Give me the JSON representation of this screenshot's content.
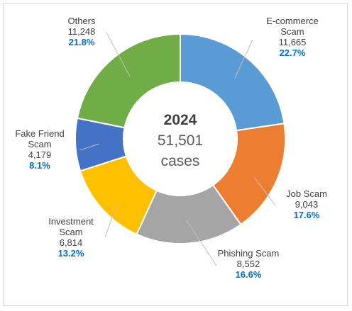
{
  "chart_data": {
    "type": "pie",
    "variant": "donut",
    "center": {
      "year": "2024",
      "total": "51,501",
      "unit": "cases"
    },
    "slices": [
      {
        "name": "E-commerce Scam",
        "lines": [
          "E-commerce",
          "Scam"
        ],
        "count": "11,665",
        "value": 11665,
        "percent": "22.7%",
        "color": "#5b9bd5"
      },
      {
        "name": "Job Scam",
        "lines": [
          "Job Scam"
        ],
        "count": "9,043",
        "value": 9043,
        "percent": "17.6%",
        "color": "#ed7d31"
      },
      {
        "name": "Phishing Scam",
        "lines": [
          "Phishing Scam"
        ],
        "count": "8,552",
        "value": 8552,
        "percent": "16.6%",
        "color": "#a5a5a5"
      },
      {
        "name": "Investment Scam",
        "lines": [
          "Investment",
          "Scam"
        ],
        "count": "6,814",
        "value": 6814,
        "percent": "13.2%",
        "color": "#ffc000"
      },
      {
        "name": "Fake Friend Scam",
        "lines": [
          "Fake Friend",
          "Scam"
        ],
        "count": "4,179",
        "value": 4179,
        "percent": "8.1%",
        "color": "#4472c4"
      },
      {
        "name": "Others",
        "lines": [
          "Others"
        ],
        "count": "11,248",
        "value": 11248,
        "percent": "21.8%",
        "color": "#70ad47"
      }
    ]
  }
}
